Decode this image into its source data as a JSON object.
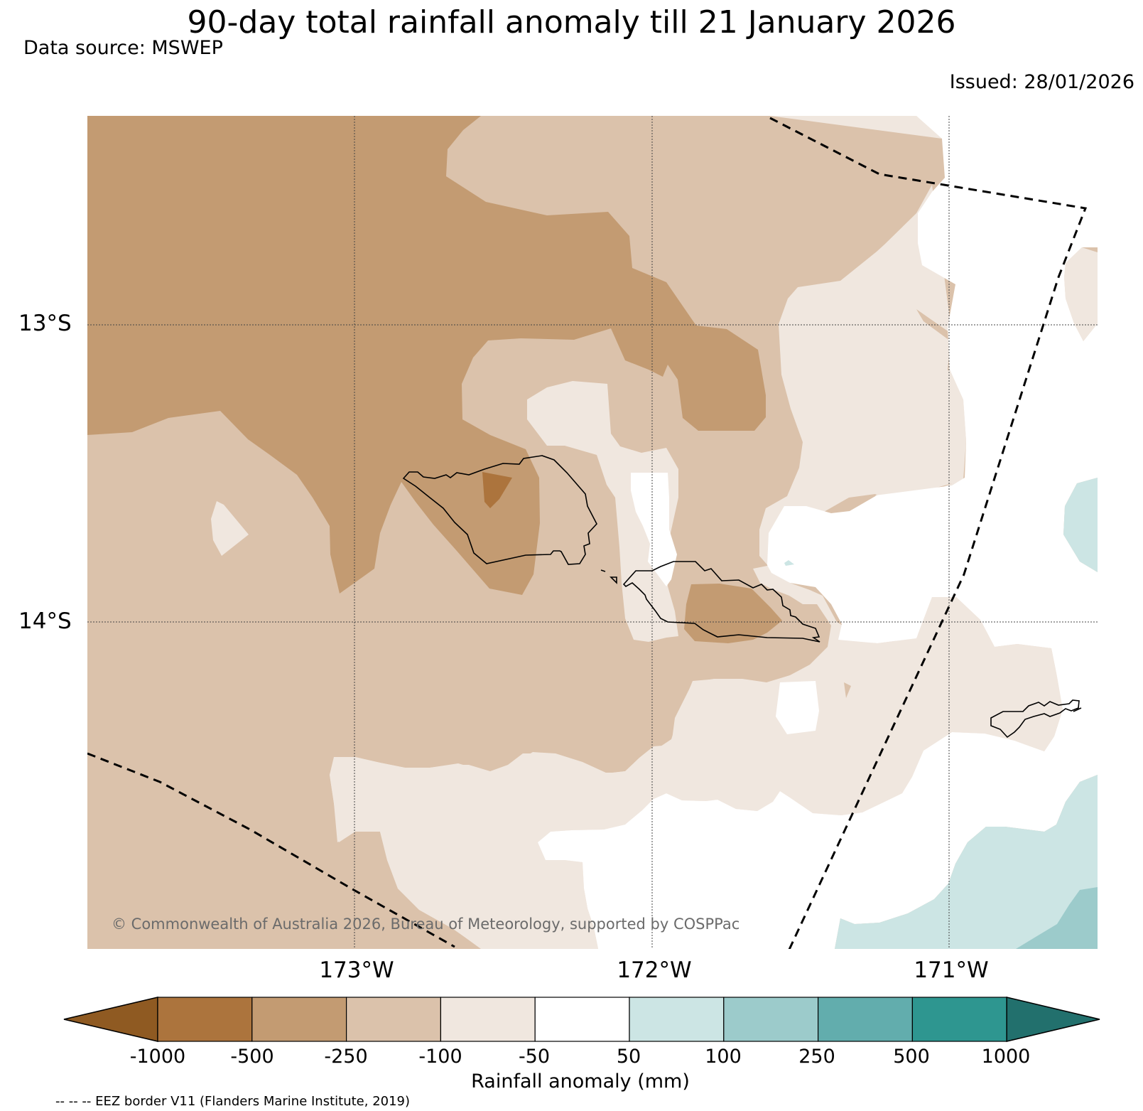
{
  "title": "90-day total rainfall anomaly till 21 January 2026",
  "data_source": "Data source: MSWEP",
  "issued": "Issued: 28/01/2026",
  "copyright": "© Commonwealth of Australia 2026, Bureau of Meteorology, supported by COSPPac",
  "footnote": "-- -- -- EEZ border V11 (Flanders Marine Institute, 2019)",
  "map": {
    "latitude_labels": [
      "13°S",
      "14°S"
    ],
    "longitude_labels": [
      "173°W",
      "172°W",
      "171°W"
    ],
    "overlays": [
      "EEZ border (dashed)",
      "coastline"
    ]
  },
  "colorbar": {
    "label": "Rainfall anomaly (mm)",
    "ticks": [
      "-1000",
      "-500",
      "-250",
      "-100",
      "-50",
      "50",
      "100",
      "250",
      "500",
      "1000"
    ],
    "colors": [
      "#8f5a22",
      "#ac743d",
      "#c39b72",
      "#dbc2ab",
      "#f0e7df",
      "#ffffff",
      "#cce5e4",
      "#9ccbcb",
      "#62adad",
      "#2e9690",
      "#22706d"
    ]
  }
}
